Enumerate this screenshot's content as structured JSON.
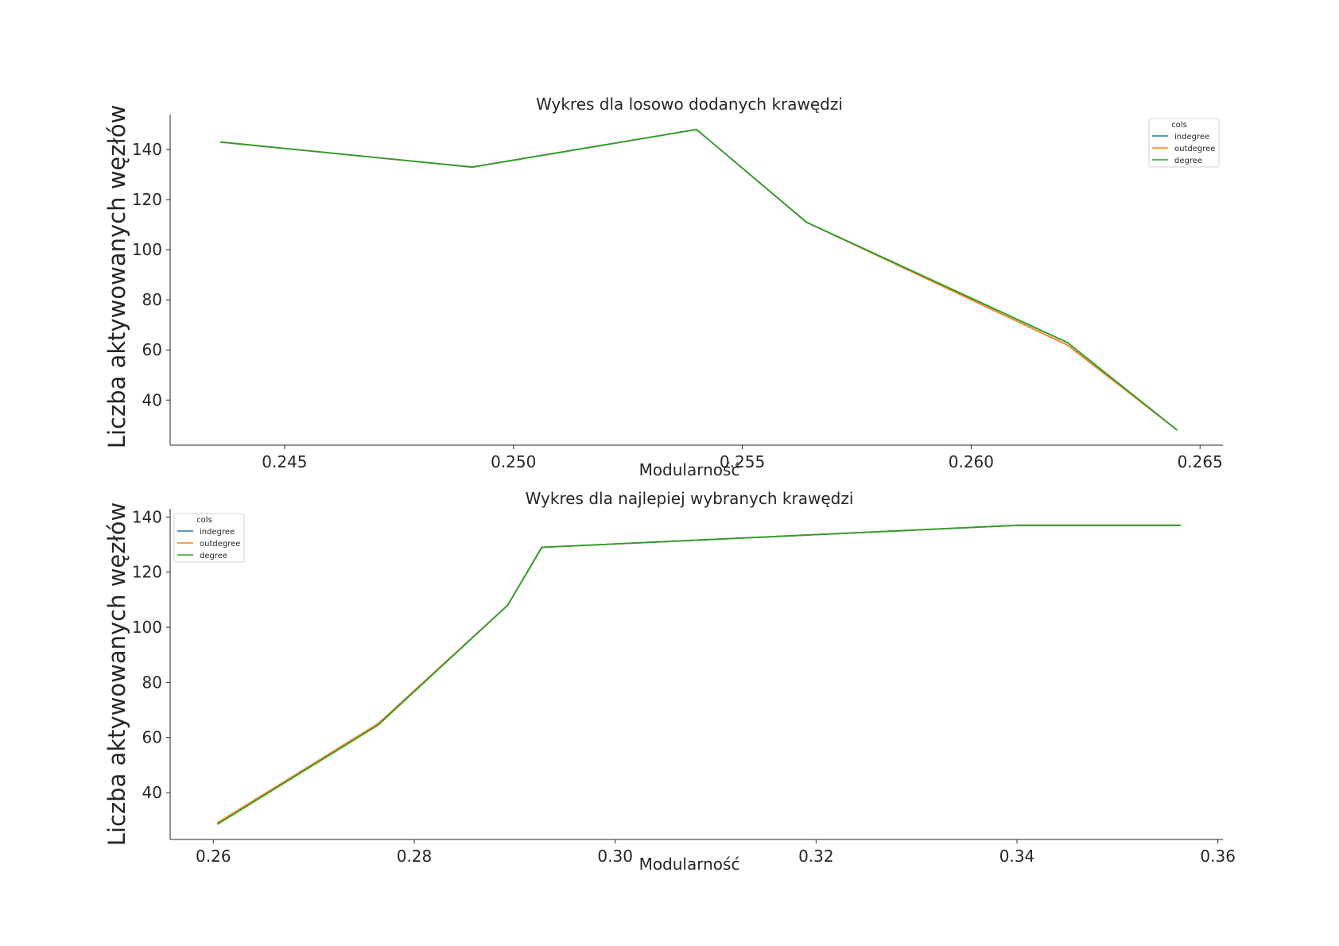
{
  "chart_data": [
    {
      "type": "line",
      "title": "Wykres dla losowo dodanych krawędzi",
      "xlabel": "Modularność",
      "ylabel": "Liczba aktywowanych węzłów",
      "xlim": [
        0.2425,
        0.2655
      ],
      "ylim": [
        22,
        154
      ],
      "xticks": [
        "0.245",
        "0.250",
        "0.255",
        "0.260",
        "0.265"
      ],
      "yticks": [
        "40",
        "60",
        "80",
        "100",
        "120",
        "140"
      ],
      "grid": false,
      "legend": {
        "title": "cols",
        "position": "upper right"
      },
      "x": [
        0.2436,
        0.2491,
        0.254,
        0.2564,
        0.2621,
        0.2645
      ],
      "series": [
        {
          "name": "indegree",
          "color": "#1f77b4",
          "values": [
            143,
            133,
            148,
            111,
            63,
            28
          ]
        },
        {
          "name": "outdegree",
          "color": "#ff7f0e",
          "values": [
            143,
            133,
            148,
            111,
            62,
            28
          ]
        },
        {
          "name": "degree",
          "color": "#2ca02c",
          "values": [
            143,
            133,
            148,
            111,
            63,
            28
          ]
        }
      ]
    },
    {
      "type": "line",
      "title": "Wykres dla najlepiej wybranych krawędzi",
      "xlabel": "Modularność",
      "ylabel": "Liczba aktywowanych węzłów",
      "xlim": [
        0.2557,
        0.3605
      ],
      "ylim": [
        23,
        143
      ],
      "xticks": [
        "0.26",
        "0.28",
        "0.30",
        "0.32",
        "0.34",
        "0.36"
      ],
      "yticks": [
        "40",
        "60",
        "80",
        "100",
        "120",
        "140"
      ],
      "grid": false,
      "legend": {
        "title": "cols",
        "position": "upper left"
      },
      "x": [
        0.2604,
        0.2764,
        0.2893,
        0.2927,
        0.34,
        0.3563
      ],
      "series": [
        {
          "name": "indegree",
          "color": "#1f77b4",
          "values": [
            29,
            65,
            108,
            129,
            137,
            137
          ]
        },
        {
          "name": "outdegree",
          "color": "#ff7f0e",
          "values": [
            29,
            65,
            108,
            129,
            137,
            137
          ]
        },
        {
          "name": "degree",
          "color": "#2ca02c",
          "values": [
            28.5,
            64.5,
            108,
            129,
            137,
            137
          ]
        }
      ]
    }
  ]
}
